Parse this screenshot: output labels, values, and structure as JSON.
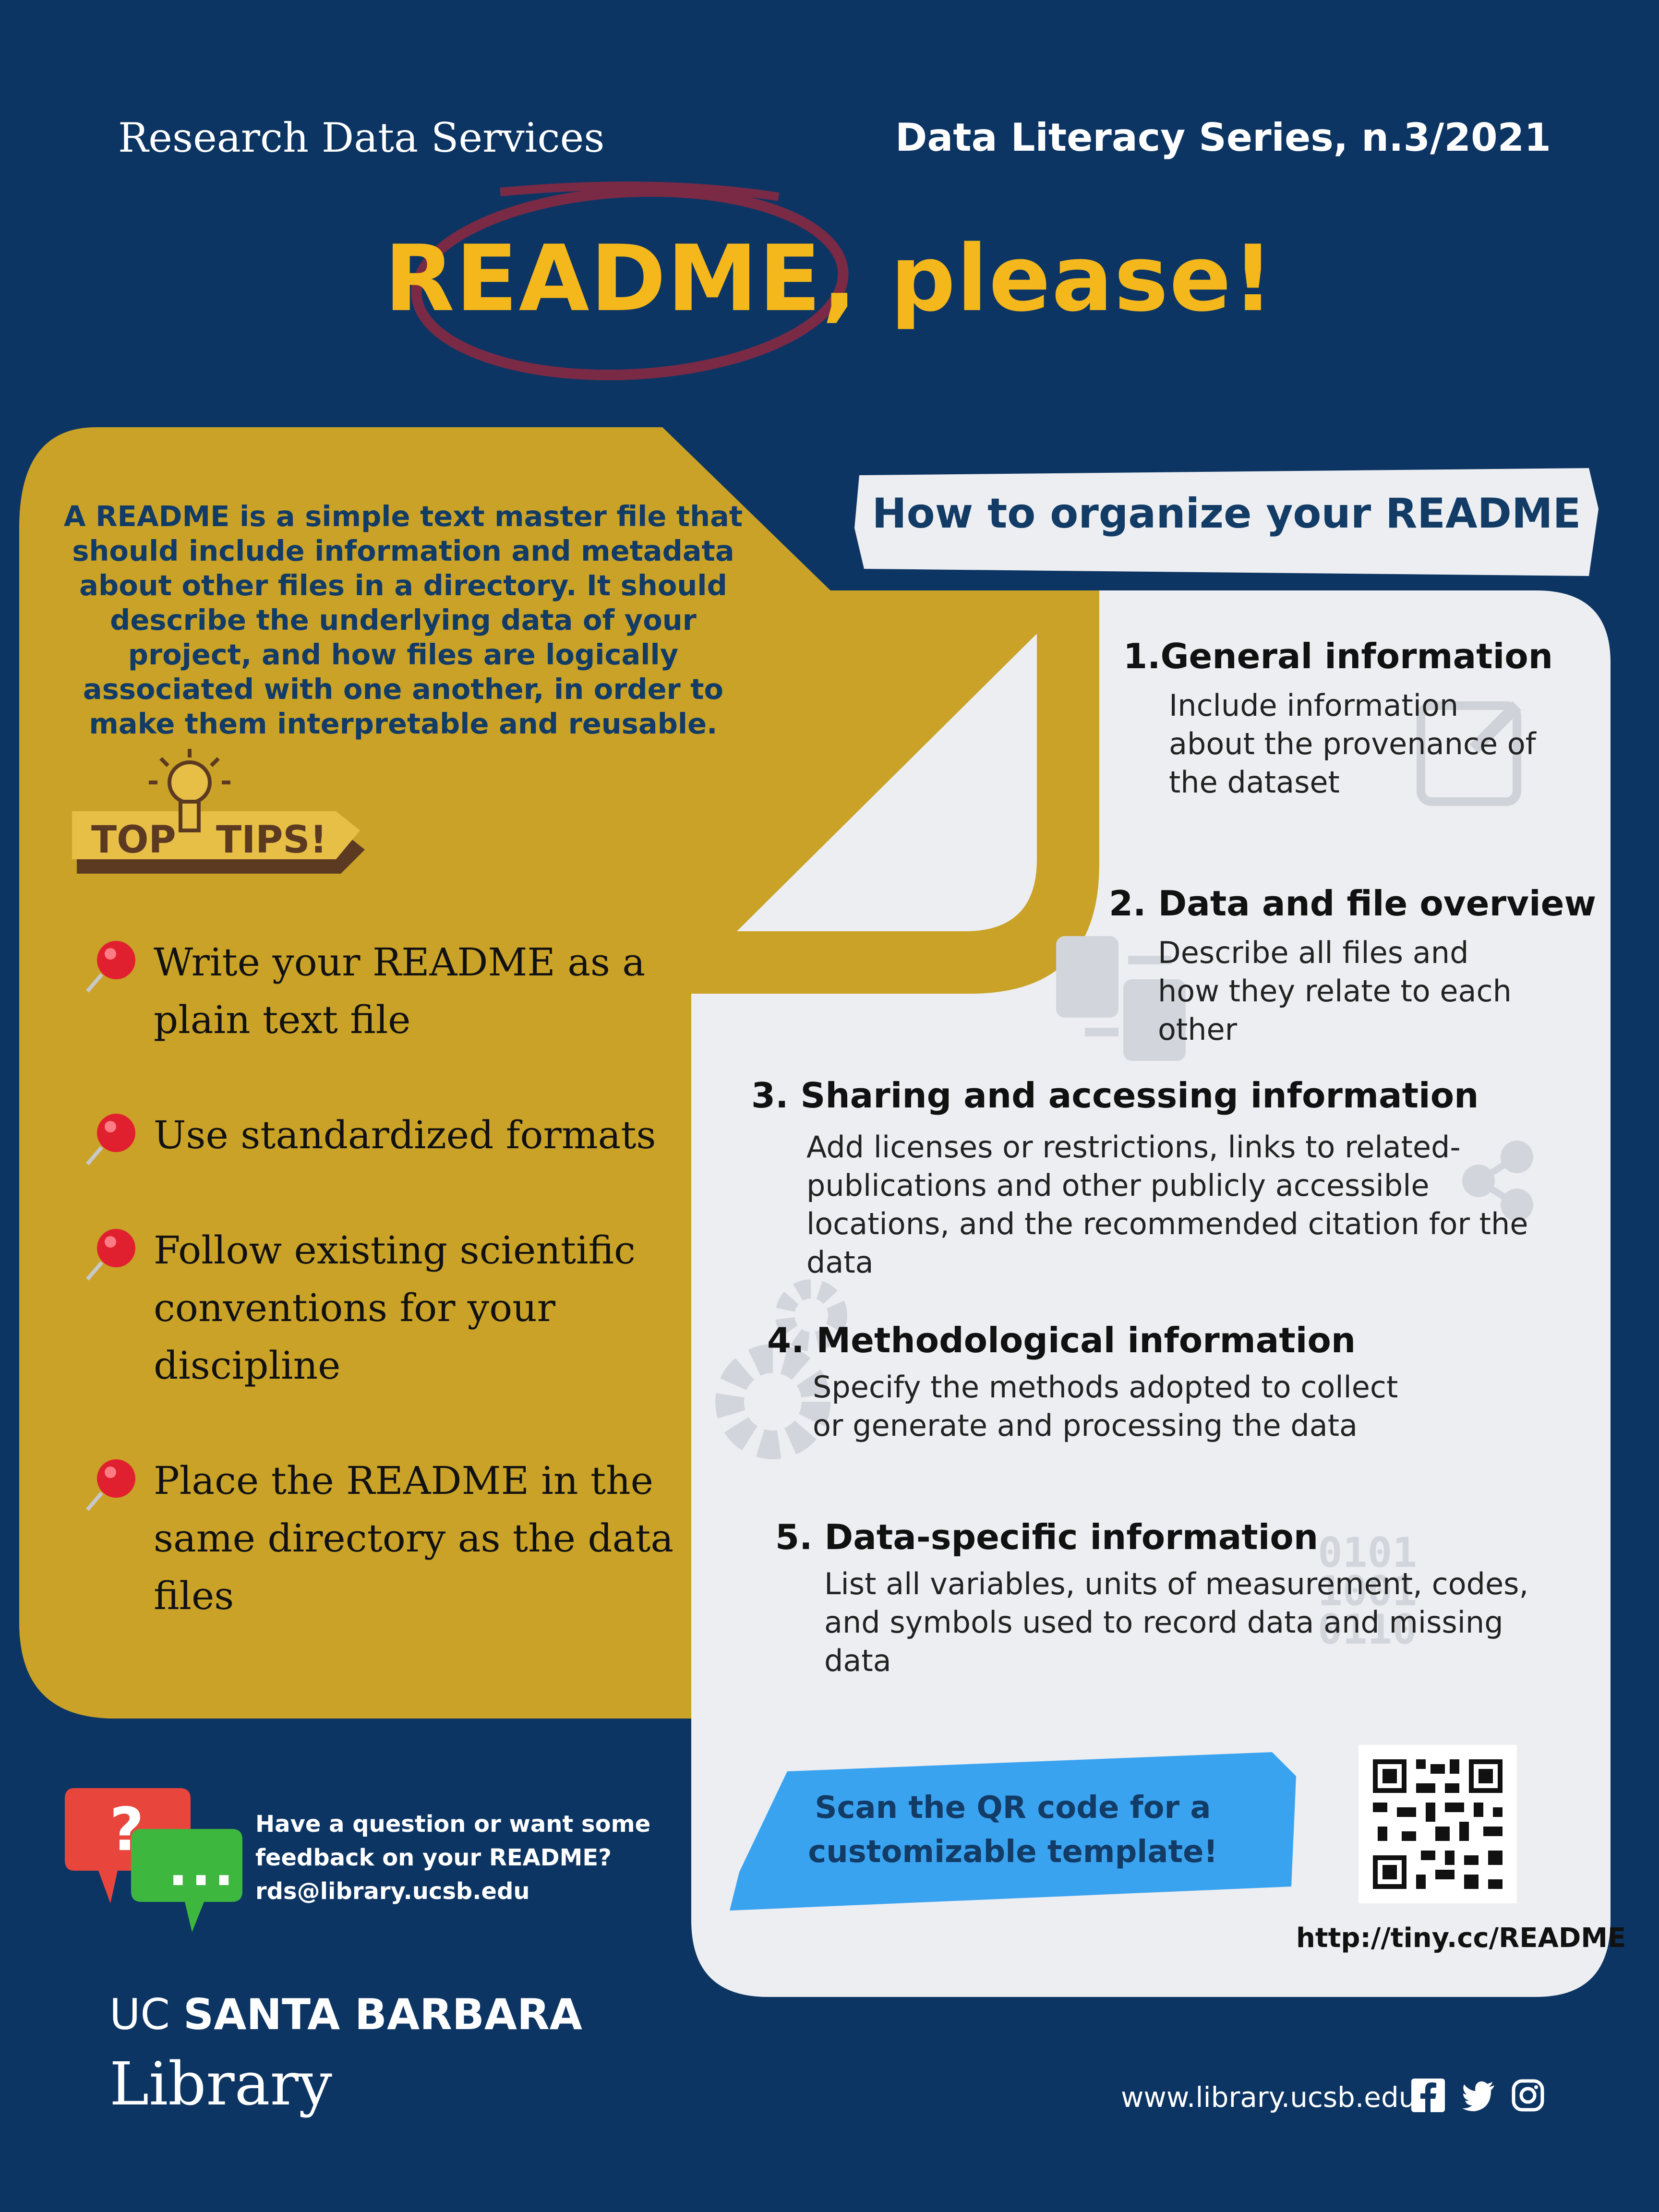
{
  "header": {
    "left": "Research Data Services",
    "right": "Data Literacy Series, n.3/2021"
  },
  "title": "README, please!",
  "intro": "A README is a simple text master file that should include information and metadata about other files in a directory. It should describe the underlying data of your project, and how files are logically associated with one another, in order to make them interpretable and reusable.",
  "top_tips_badge": {
    "left": "TOP",
    "right": "TIPS!"
  },
  "tips": [
    {
      "label": "Write your README as a plain text file"
    },
    {
      "label": "Use standardized formats"
    },
    {
      "label": "Follow existing scientific conventions for your discipline"
    },
    {
      "label": "Place the README in the same directory as the data files"
    }
  ],
  "how_title": "How to organize your README",
  "sections": [
    {
      "title": "1.General information",
      "body": "Include information about the provenance of the dataset"
    },
    {
      "title": "2. Data and file overview",
      "body": "Describe all files and how they relate to each other"
    },
    {
      "title": "3. Sharing and accessing information",
      "body": "Add licenses or restrictions, links to related-publications and other publicly accessible locations, and the recommended citation for the data"
    },
    {
      "title": "4. Methodological information",
      "body": "Specify the methods adopted to collect or generate and processing the data"
    },
    {
      "title": "5. Data-specific information",
      "body": "List all variables, units of measurement, codes, and symbols used to record data and missing data"
    }
  ],
  "scan_text": "Scan the QR code for a customizable template!",
  "qr_url": "http://tiny.cc/README",
  "question": {
    "line1": "Have a question or want some",
    "line2": "feedback on your README?",
    "line3": "rds@library.ucsb.edu"
  },
  "bubble_icons": {
    "question_mark": "?",
    "dots": "..."
  },
  "binary_digits": [
    "0101",
    "1001",
    "0110"
  ],
  "footer": {
    "ucsb_prefix": "UC",
    "ucsb_name": "SANTA BARBARA",
    "library": "Library",
    "website": "www.library.ucsb.edu",
    "social_icons": [
      "facebook-icon",
      "twitter-icon",
      "instagram-icon"
    ]
  },
  "colors": {
    "navy": "#0d3563",
    "gold": "#c9a227",
    "title_yellow": "#f4b71c",
    "light_panel": "#eceef1",
    "maroon_circle": "#7a2a45",
    "scan_blue": "#3aa3f0",
    "pin_red": "#e0202f"
  }
}
